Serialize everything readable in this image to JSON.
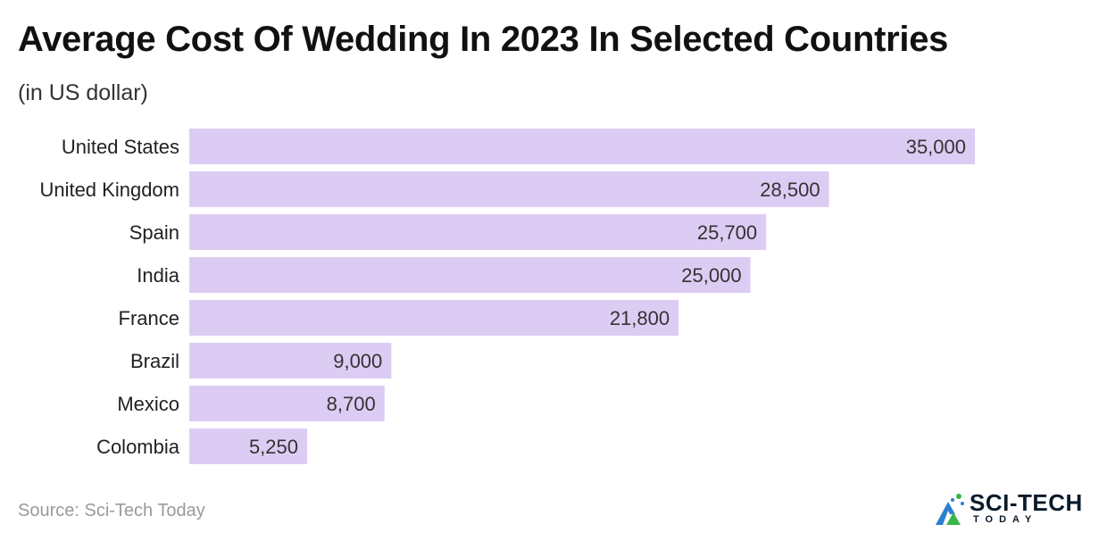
{
  "chart_data": {
    "type": "bar",
    "orientation": "horizontal",
    "title": "Average Cost Of Wedding In 2023 In Selected Countries",
    "subtitle": "(in US dollar)",
    "categories": [
      "United States",
      "United Kingdom",
      "Spain",
      "India",
      "France",
      "Brazil",
      "Mexico",
      "Colombia"
    ],
    "values": [
      35000,
      28500,
      25700,
      25000,
      21800,
      9000,
      8700,
      5250
    ],
    "value_labels": [
      "35,000",
      "28,500",
      "25,700",
      "25,000",
      "21,800",
      "9,000",
      "8,700",
      "5,250"
    ],
    "xlim": [
      0,
      35000
    ],
    "grid": false,
    "bar_color": "#dcccf3"
  },
  "footer": {
    "source": "Source: Sci-Tech Today"
  },
  "logo": {
    "name": "SCI-TECH",
    "tagline": "TODAY",
    "icon": "sci-tech-logo-icon"
  },
  "colors": {
    "bar": "#dcccf3",
    "title": "#111111",
    "source": "#9a9a9a",
    "logo_blue": "#2a7fd0",
    "logo_green": "#39b54a"
  }
}
